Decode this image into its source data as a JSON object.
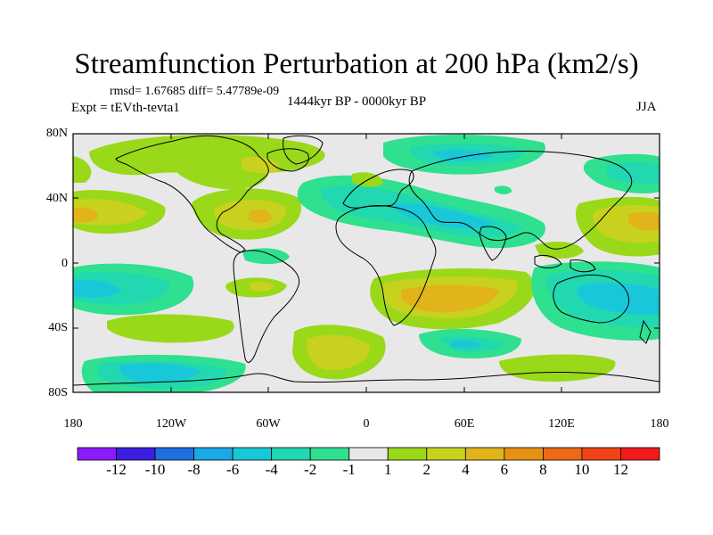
{
  "title": "Streamfunction Perturbation at 200 hPa (km2/s)",
  "stats": "rmsd= 1.67685 diff= 5.47789e-09",
  "experiment": "Expt = tEVth-tevta1",
  "period": "1444kyr BP - 0000kyr BP",
  "season": "JJA",
  "lat_labels": [
    "80N",
    "40N",
    "0",
    "40S",
    "80S"
  ],
  "lon_labels": [
    "180",
    "120W",
    "60W",
    "0",
    "60E",
    "120E",
    "180"
  ],
  "colorbar": {
    "labels": [
      "-12",
      "-10",
      "-8",
      "-6",
      "-4",
      "-2",
      "-1",
      "1",
      "2",
      "4",
      "6",
      "8",
      "10",
      "12"
    ],
    "colors": [
      "#8c1aff",
      "#3b1ee0",
      "#1e6fe0",
      "#1aa8e6",
      "#19c8d8",
      "#21d8b0",
      "#2ee090",
      "#e8e8e8",
      "#9ad81a",
      "#c8d21e",
      "#e0b41a",
      "#e69116",
      "#ec6a14",
      "#f04418",
      "#f21a1a"
    ]
  },
  "map_colors": {
    "ocean_background": "#e8e8e8",
    "coastline": "#000000"
  },
  "anomaly_regions": [
    {
      "name": "Subtropical North Pacific high",
      "sign": "positive",
      "level": 4
    },
    {
      "name": "North Atlantic / Arctic band",
      "sign": "positive",
      "level": 2
    },
    {
      "name": "Mediterranean to East Asia low",
      "sign": "negative",
      "level": -4
    },
    {
      "name": "Southern Africa high",
      "sign": "positive",
      "level": 6
    },
    {
      "name": "Australian low",
      "sign": "negative",
      "level": -4
    },
    {
      "name": "South Pacific low",
      "sign": "negative",
      "level": -4
    }
  ]
}
